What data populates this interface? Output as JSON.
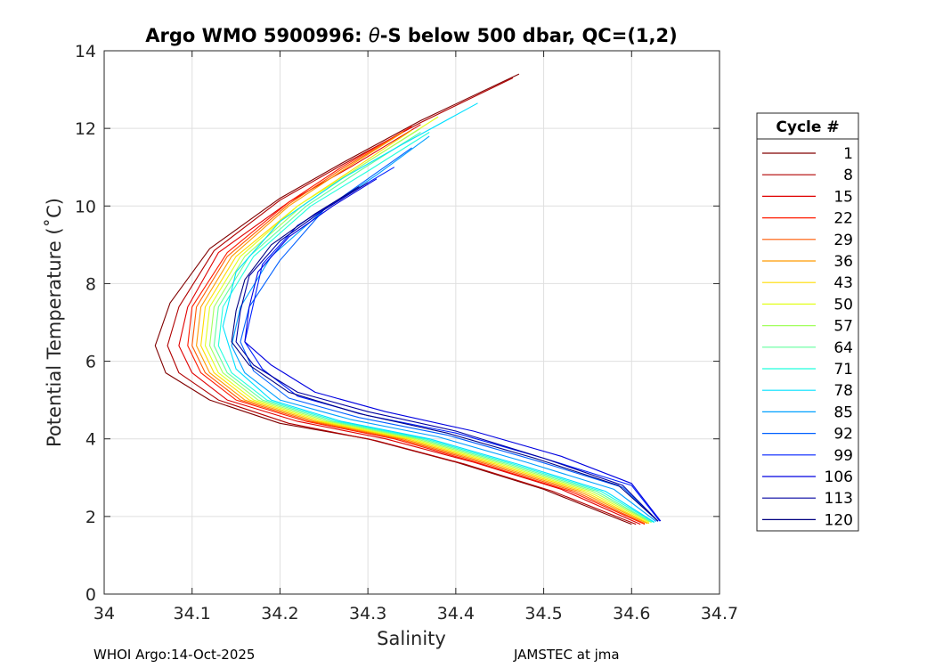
{
  "chart_data": {
    "type": "line",
    "title_prefix": "Argo WMO 5900996: ",
    "title_theta": "θ",
    "title_suffix": "-S below 500 dbar,  QC=(1,2)",
    "xlabel": "Salinity",
    "ylabel": "Potential Temperature (˚C)",
    "xlim": [
      34.0,
      34.7
    ],
    "ylim": [
      0,
      14
    ],
    "xticks": [
      34,
      34.1,
      34.2,
      34.3,
      34.4,
      34.5,
      34.6,
      34.7
    ],
    "xtick_labels": [
      "34",
      "34.1",
      "34.2",
      "34.3",
      "34.4",
      "34.5",
      "34.6",
      "34.7"
    ],
    "yticks": [
      0,
      2,
      4,
      6,
      8,
      10,
      12,
      14
    ],
    "ytick_labels": [
      "0",
      "2",
      "4",
      "6",
      "8",
      "10",
      "12",
      "14"
    ],
    "grid": true,
    "legend": {
      "title": "Cycle #",
      "placement": "outside-right",
      "entries": [
        {
          "label": "1",
          "color": "#800000"
        },
        {
          "label": "8",
          "color": "#b00000"
        },
        {
          "label": "15",
          "color": "#e00000"
        },
        {
          "label": "22",
          "color": "#ff1a00"
        },
        {
          "label": "29",
          "color": "#ff5a00"
        },
        {
          "label": "36",
          "color": "#ff9a00"
        },
        {
          "label": "43",
          "color": "#ffdb00"
        },
        {
          "label": "50",
          "color": "#e2ff1d"
        },
        {
          "label": "57",
          "color": "#a2ff5d"
        },
        {
          "label": "64",
          "color": "#62ff9d"
        },
        {
          "label": "71",
          "color": "#22ffdd"
        },
        {
          "label": "78",
          "color": "#00e0ff"
        },
        {
          "label": "85",
          "color": "#00a0ff"
        },
        {
          "label": "92",
          "color": "#0060ff"
        },
        {
          "label": "99",
          "color": "#0020ff"
        },
        {
          "label": "106",
          "color": "#0000e0"
        },
        {
          "label": "113",
          "color": "#0000a0"
        },
        {
          "label": "120",
          "color": "#000080"
        }
      ]
    },
    "series": [
      {
        "name": "1",
        "salinity": [
          34.472,
          34.36,
          34.27,
          34.2,
          34.12,
          34.075,
          34.058,
          34.07,
          34.12,
          34.2,
          34.3,
          34.4,
          34.5,
          34.6
        ],
        "theta": [
          13.4,
          12.2,
          11.1,
          10.2,
          8.9,
          7.5,
          6.4,
          5.7,
          5.0,
          4.4,
          4.0,
          3.4,
          2.7,
          1.8
        ]
      },
      {
        "name": "8",
        "salinity": [
          34.465,
          34.36,
          34.27,
          34.2,
          34.125,
          34.085,
          34.072,
          34.085,
          34.13,
          34.21,
          34.31,
          34.41,
          34.51,
          34.605
        ],
        "theta": [
          13.3,
          12.15,
          11.05,
          10.15,
          8.85,
          7.4,
          6.4,
          5.7,
          5.0,
          4.4,
          3.95,
          3.35,
          2.65,
          1.8
        ]
      },
      {
        "name": "15",
        "salinity": [
          34.36,
          34.28,
          34.21,
          34.13,
          34.095,
          34.085,
          34.1,
          34.14,
          34.22,
          34.32,
          34.42,
          34.52,
          34.61
        ],
        "theta": [
          12.1,
          11.0,
          10.1,
          8.8,
          7.4,
          6.4,
          5.7,
          5.0,
          4.45,
          4.0,
          3.4,
          2.7,
          1.8
        ]
      },
      {
        "name": "22",
        "salinity": [
          34.35,
          34.27,
          34.21,
          34.14,
          34.1,
          34.095,
          34.11,
          34.15,
          34.23,
          34.33,
          34.43,
          34.53,
          34.615
        ],
        "theta": [
          12.05,
          11.0,
          10.1,
          8.8,
          7.4,
          6.4,
          5.7,
          5.0,
          4.45,
          4.0,
          3.35,
          2.65,
          1.8
        ]
      },
      {
        "name": "29",
        "salinity": [
          34.34,
          34.27,
          34.21,
          34.14,
          34.105,
          34.1,
          34.115,
          34.155,
          34.235,
          34.335,
          34.435,
          34.535,
          34.615
        ],
        "theta": [
          11.9,
          10.95,
          10.05,
          8.7,
          7.4,
          6.4,
          5.7,
          5.0,
          4.45,
          4.0,
          3.35,
          2.65,
          1.82
        ]
      },
      {
        "name": "36",
        "salinity": [
          34.34,
          34.27,
          34.21,
          34.145,
          34.11,
          34.105,
          34.12,
          34.16,
          34.24,
          34.34,
          34.44,
          34.54,
          34.618
        ],
        "theta": [
          11.9,
          10.9,
          10.0,
          8.7,
          7.4,
          6.4,
          5.7,
          5.0,
          4.45,
          4.0,
          3.35,
          2.65,
          1.82
        ]
      },
      {
        "name": "43",
        "salinity": [
          34.35,
          34.28,
          34.22,
          34.15,
          34.115,
          34.11,
          34.125,
          34.165,
          34.245,
          34.345,
          34.445,
          34.545,
          34.62
        ],
        "theta": [
          11.95,
          10.9,
          10.0,
          8.7,
          7.4,
          6.4,
          5.7,
          5.0,
          4.45,
          4.0,
          3.35,
          2.65,
          1.82
        ]
      },
      {
        "name": "50",
        "salinity": [
          34.38,
          34.29,
          34.22,
          34.155,
          34.12,
          34.115,
          34.13,
          34.17,
          34.25,
          34.35,
          34.45,
          34.55,
          34.62
        ],
        "theta": [
          12.3,
          11.0,
          10.0,
          8.7,
          7.4,
          6.4,
          5.7,
          5.0,
          4.45,
          4.0,
          3.35,
          2.65,
          1.85
        ]
      },
      {
        "name": "57",
        "salinity": [
          34.36,
          34.29,
          34.225,
          34.16,
          34.125,
          34.12,
          34.135,
          34.175,
          34.255,
          34.355,
          34.455,
          34.555,
          34.622
        ],
        "theta": [
          12.0,
          11.0,
          10.0,
          8.7,
          7.4,
          6.4,
          5.7,
          5.0,
          4.45,
          4.0,
          3.35,
          2.65,
          1.85
        ]
      },
      {
        "name": "64",
        "salinity": [
          34.36,
          34.29,
          34.23,
          34.165,
          34.13,
          34.125,
          34.14,
          34.18,
          34.26,
          34.36,
          34.46,
          34.56,
          34.623
        ],
        "theta": [
          11.9,
          10.9,
          10.0,
          8.7,
          7.4,
          6.4,
          5.7,
          5.0,
          4.45,
          4.0,
          3.35,
          2.65,
          1.85
        ]
      },
      {
        "name": "71",
        "salinity": [
          34.37,
          34.3,
          34.235,
          34.17,
          34.135,
          34.13,
          34.145,
          34.185,
          34.265,
          34.365,
          34.465,
          34.565,
          34.625
        ],
        "theta": [
          11.9,
          10.9,
          10.0,
          8.7,
          7.4,
          6.4,
          5.7,
          5.0,
          4.45,
          4.0,
          3.35,
          2.65,
          1.85
        ]
      },
      {
        "name": "78",
        "salinity": [
          34.425,
          34.34,
          34.27,
          34.2,
          34.15,
          34.135,
          34.15,
          34.19,
          34.27,
          34.37,
          34.47,
          34.57,
          34.626
        ],
        "theta": [
          12.65,
          11.6,
          10.7,
          9.6,
          8.3,
          6.9,
          5.8,
          5.0,
          4.45,
          4.0,
          3.35,
          2.65,
          1.85
        ]
      },
      {
        "name": "85",
        "salinity": [
          34.37,
          34.31,
          34.25,
          34.19,
          34.155,
          34.145,
          34.16,
          34.2,
          34.28,
          34.38,
          34.48,
          34.58,
          34.628
        ],
        "theta": [
          11.8,
          10.8,
          9.9,
          8.7,
          7.4,
          6.4,
          5.7,
          5.0,
          4.5,
          4.05,
          3.4,
          2.7,
          1.87
        ]
      },
      {
        "name": "92",
        "salinity": [
          34.35,
          34.3,
          34.25,
          34.2,
          34.165,
          34.155,
          34.17,
          34.21,
          34.29,
          34.39,
          34.49,
          34.59,
          34.63
        ],
        "theta": [
          11.5,
          10.7,
          9.9,
          8.6,
          7.4,
          6.5,
          5.75,
          5.05,
          4.55,
          4.1,
          3.45,
          2.75,
          1.87
        ]
      },
      {
        "name": "99",
        "salinity": [
          34.33,
          34.27,
          34.22,
          34.18,
          34.17,
          34.16,
          34.18,
          34.22,
          34.3,
          34.4,
          34.5,
          34.6,
          34.632
        ],
        "theta": [
          11.0,
          10.2,
          9.5,
          8.5,
          7.5,
          6.5,
          5.8,
          5.1,
          4.6,
          4.15,
          3.5,
          2.8,
          1.88
        ]
      },
      {
        "name": "106",
        "salinity": [
          34.31,
          34.26,
          34.21,
          34.175,
          34.165,
          34.16,
          34.19,
          34.24,
          34.32,
          34.42,
          34.52,
          34.6,
          34.633
        ],
        "theta": [
          10.7,
          10.0,
          9.2,
          8.3,
          7.4,
          6.5,
          5.9,
          5.2,
          4.7,
          4.2,
          3.55,
          2.85,
          1.88
        ]
      },
      {
        "name": "113",
        "salinity": [
          34.3,
          34.25,
          34.2,
          34.165,
          34.155,
          34.15,
          34.17,
          34.22,
          34.3,
          34.4,
          34.5,
          34.59,
          34.63
        ],
        "theta": [
          10.6,
          9.9,
          9.1,
          8.2,
          7.3,
          6.5,
          5.9,
          5.2,
          4.7,
          4.2,
          3.5,
          2.8,
          1.88
        ]
      },
      {
        "name": "120",
        "salinity": [
          34.29,
          34.24,
          34.19,
          34.16,
          34.15,
          34.145,
          34.165,
          34.21,
          34.29,
          34.39,
          34.49,
          34.585,
          34.63
        ],
        "theta": [
          10.5,
          9.8,
          9.0,
          8.1,
          7.3,
          6.5,
          5.9,
          5.2,
          4.65,
          4.15,
          3.5,
          2.8,
          1.88
        ]
      }
    ]
  },
  "footer": {
    "left": "WHOI Argo:14-Oct-2025",
    "right": "JAMSTEC at jma"
  }
}
